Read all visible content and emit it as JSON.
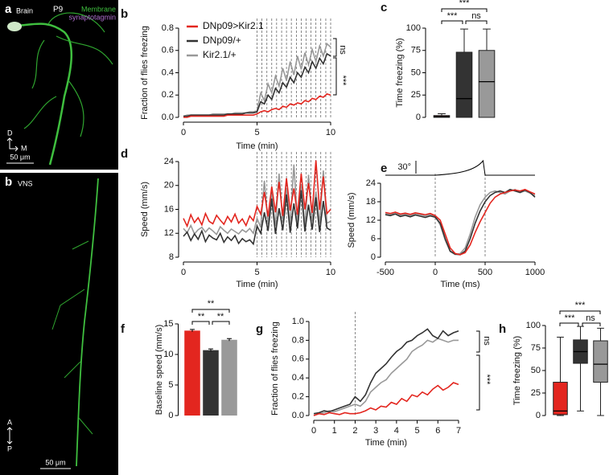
{
  "images": [
    {
      "panel": "a",
      "region": "Brain",
      "stage": "P9",
      "channels": [
        "Membrane",
        "synaptotagmin"
      ],
      "axes": [
        "D",
        "M"
      ],
      "scale_bar": "50 μm"
    },
    {
      "panel": "b",
      "region": "VNS",
      "axes": [
        "A",
        "P"
      ],
      "scale_bar": "50 μm"
    }
  ],
  "chart_data": [
    {
      "panel": "b",
      "type": "line",
      "xlabel": "Time (min)",
      "ylabel": "Fraction of flies freezing",
      "x": [
        0,
        0.25,
        0.5,
        0.75,
        1,
        1.25,
        1.5,
        1.75,
        2,
        2.25,
        2.5,
        2.75,
        3,
        3.25,
        3.5,
        3.75,
        4,
        4.25,
        4.5,
        4.75,
        5,
        5.25,
        5.5,
        5.75,
        6,
        6.25,
        6.5,
        6.75,
        7,
        7.25,
        7.5,
        7.75,
        8,
        8.25,
        8.5,
        8.75,
        9,
        9.25,
        9.5,
        9.75,
        10
      ],
      "xlim": [
        0,
        10
      ],
      "xticks": [
        0,
        5,
        10
      ],
      "ylim": [
        0,
        0.8
      ],
      "yticks": [
        {
          "value": 0,
          "label": "0.0"
        },
        0.2,
        0.4,
        0.6,
        0.8
      ],
      "stimuli": [
        5,
        5.33,
        5.67,
        6,
        6.33,
        6.67,
        7,
        7.33,
        7.67,
        8,
        8.33,
        8.67,
        9,
        9.33,
        9.67,
        10
      ],
      "legend": "upper left",
      "series": [
        {
          "name": "DNp09>Kir2.1",
          "color": "#e3261f",
          "values": [
            0,
            0,
            0.01,
            0.01,
            0.01,
            0.01,
            0.01,
            0.01,
            0.01,
            0.01,
            0.01,
            0.01,
            0.02,
            0.02,
            0.02,
            0.02,
            0.02,
            0.02,
            0.02,
            0.02,
            0.03,
            0.05,
            0.06,
            0.05,
            0.07,
            0.08,
            0.07,
            0.1,
            0.09,
            0.12,
            0.11,
            0.13,
            0.12,
            0.15,
            0.14,
            0.17,
            0.16,
            0.19,
            0.18,
            0.21,
            0.2
          ]
        },
        {
          "name": "DNp09/+",
          "color": "#333333",
          "values": [
            0.01,
            0.01,
            0.02,
            0.02,
            0.02,
            0.02,
            0.02,
            0.02,
            0.02,
            0.02,
            0.02,
            0.02,
            0.03,
            0.03,
            0.03,
            0.03,
            0.03,
            0.04,
            0.04,
            0.04,
            0.05,
            0.14,
            0.12,
            0.2,
            0.16,
            0.26,
            0.22,
            0.31,
            0.27,
            0.36,
            0.31,
            0.4,
            0.36,
            0.45,
            0.4,
            0.5,
            0.44,
            0.53,
            0.48,
            0.57,
            0.55
          ]
        },
        {
          "name": "Kir2.1/+",
          "color": "#999999",
          "values": [
            0.01,
            0.02,
            0.02,
            0.02,
            0.02,
            0.02,
            0.02,
            0.02,
            0.03,
            0.03,
            0.03,
            0.03,
            0.03,
            0.03,
            0.04,
            0.04,
            0.04,
            0.04,
            0.05,
            0.05,
            0.06,
            0.22,
            0.15,
            0.3,
            0.22,
            0.37,
            0.28,
            0.44,
            0.33,
            0.5,
            0.38,
            0.55,
            0.43,
            0.58,
            0.47,
            0.61,
            0.5,
            0.64,
            0.55,
            0.66,
            0.63
          ]
        }
      ],
      "annotations": [
        "ns",
        "***"
      ]
    },
    {
      "panel": "c",
      "type": "box",
      "ylabel": "Time freezing (%)",
      "ylim": [
        0,
        100
      ],
      "yticks": [
        0,
        25,
        50,
        75,
        100
      ],
      "boxes": [
        {
          "color": "#e3261f",
          "min": 0,
          "q1": 0,
          "median": 1,
          "q3": 2,
          "max": 4
        },
        {
          "color": "#333333",
          "min": 0,
          "q1": 0,
          "median": 21,
          "q3": 73,
          "max": 99
        },
        {
          "color": "#999999",
          "min": 0,
          "q1": 0,
          "median": 40,
          "q3": 75,
          "max": 99
        }
      ],
      "annotations": [
        "***",
        "***",
        "ns"
      ]
    },
    {
      "panel": "d",
      "type": "line",
      "xlabel": "Time (min)",
      "ylabel": "Speed (mm/s)",
      "x": [
        0,
        0.25,
        0.5,
        0.75,
        1,
        1.25,
        1.5,
        1.75,
        2,
        2.25,
        2.5,
        2.75,
        3,
        3.25,
        3.5,
        3.75,
        4,
        4.25,
        4.5,
        4.75,
        5,
        5.25,
        5.5,
        5.75,
        6,
        6.25,
        6.5,
        6.75,
        7,
        7.25,
        7.5,
        7.75,
        8,
        8.25,
        8.5,
        8.75,
        9,
        9.25,
        9.5,
        9.75,
        10
      ],
      "xlim": [
        0,
        10
      ],
      "xticks": [
        0,
        5,
        10
      ],
      "ylim": [
        8,
        24
      ],
      "yticks": [
        8,
        12,
        16,
        20,
        24
      ],
      "stimuli": [
        5,
        5.33,
        5.67,
        6,
        6.33,
        6.67,
        7,
        7.33,
        7.67,
        8,
        8.33,
        8.67,
        9,
        9.33,
        9.67,
        10
      ],
      "series": [
        {
          "name": "DNp09>Kir2.1",
          "color": "#e3261f",
          "values": [
            14.5,
            13.2,
            15.1,
            13.8,
            14.6,
            13.4,
            15.3,
            14.0,
            13.6,
            15.0,
            14.2,
            13.5,
            14.8,
            13.9,
            15.2,
            13.7,
            14.4,
            13.3,
            14.9,
            14.1,
            16.5,
            15.2,
            18.9,
            14.8,
            19.8,
            15.5,
            20.6,
            14.9,
            21.2,
            15.8,
            19.5,
            15.1,
            22.0,
            16.0,
            20.4,
            15.4,
            24.2,
            15.9,
            21.5,
            15.3,
            16.0
          ]
        },
        {
          "name": "DNp09/+",
          "color": "#333333",
          "values": [
            11.5,
            12.2,
            10.8,
            11.9,
            11.0,
            12.4,
            10.6,
            11.7,
            11.2,
            10.9,
            12.0,
            10.5,
            11.4,
            10.8,
            11.6,
            10.3,
            11.1,
            10.6,
            10.9,
            10.2,
            13.2,
            12.0,
            15.5,
            12.4,
            17.8,
            11.9,
            16.2,
            12.5,
            18.5,
            12.1,
            17.0,
            12.8,
            19.2,
            12.3,
            16.8,
            12.6,
            18.0,
            12.2,
            17.4,
            12.9,
            12.5
          ]
        },
        {
          "name": "Kir2.1/+",
          "color": "#999999",
          "values": [
            12.8,
            12.1,
            13.3,
            11.9,
            12.6,
            13.0,
            12.2,
            12.9,
            12.4,
            11.8,
            13.1,
            12.5,
            12.0,
            12.7,
            12.3,
            11.9,
            12.6,
            12.2,
            12.8,
            12.0,
            14.5,
            13.0,
            20.8,
            13.5,
            18.5,
            13.2,
            22.0,
            13.8,
            19.6,
            13.4,
            23.5,
            13.9,
            20.2,
            13.3,
            21.8,
            14.0,
            19.0,
            13.6,
            22.5,
            13.7,
            14.0
          ]
        }
      ]
    },
    {
      "panel": "e",
      "type": "line",
      "xlabel": "Time (ms)",
      "ylabel": "Speed (mm/s)",
      "stim_label": "30°",
      "x": [
        -500,
        -450,
        -400,
        -350,
        -300,
        -250,
        -200,
        -150,
        -100,
        -50,
        0,
        50,
        100,
        150,
        200,
        250,
        300,
        350,
        400,
        450,
        500,
        550,
        600,
        650,
        700,
        750,
        800,
        850,
        900,
        950,
        1000
      ],
      "xlim": [
        -500,
        1000
      ],
      "xticks": [
        -500,
        0,
        500,
        1000
      ],
      "ylim": [
        0,
        24
      ],
      "yticks": [
        0,
        6,
        12,
        18,
        24
      ],
      "stimuli": [
        0,
        500
      ],
      "series": [
        {
          "name": "DNp09>Kir2.1",
          "color": "#e3261f",
          "values": [
            14.5,
            14.2,
            14.6,
            14.0,
            14.3,
            13.9,
            14.4,
            14.1,
            13.8,
            14.2,
            13.5,
            12.0,
            7.5,
            3.0,
            1.2,
            0.8,
            1.5,
            4.0,
            8.0,
            11.5,
            14.5,
            17.5,
            19.5,
            20.5,
            21.0,
            21.5,
            21.8,
            21.5,
            22.0,
            21.2,
            20.5
          ]
        },
        {
          "name": "DNp09/+",
          "color": "#333333",
          "values": [
            13.8,
            13.5,
            14.0,
            13.2,
            13.6,
            13.1,
            13.7,
            13.3,
            12.9,
            13.4,
            13.0,
            11.0,
            6.0,
            2.0,
            1.0,
            0.8,
            2.0,
            6.0,
            11.0,
            15.0,
            18.0,
            20.0,
            21.0,
            21.5,
            21.0,
            22.0,
            21.5,
            21.0,
            21.8,
            21.0,
            19.5
          ]
        },
        {
          "name": "Kir2.1/+",
          "color": "#999999",
          "values": [
            14.2,
            13.8,
            14.5,
            13.6,
            14.0,
            13.5,
            14.2,
            13.8,
            13.3,
            13.9,
            13.2,
            10.5,
            5.5,
            1.8,
            0.9,
            1.2,
            3.0,
            7.5,
            13.0,
            17.0,
            19.5,
            21.0,
            21.5,
            21.0,
            20.5,
            21.5,
            22.0,
            21.0,
            21.5,
            20.8,
            20.0
          ]
        }
      ]
    },
    {
      "panel": "f",
      "type": "bar",
      "ylabel": "Baseline speed (mm/s)",
      "ylim": [
        0,
        15
      ],
      "yticks": [
        0,
        5,
        10,
        15
      ],
      "values": [
        13.9,
        10.7,
        12.4
      ],
      "errors": [
        0.2,
        0.2,
        0.2
      ],
      "colors": [
        "#e3261f",
        "#333333",
        "#999999"
      ],
      "annotations": [
        "**",
        "**",
        "**"
      ]
    },
    {
      "panel": "g",
      "type": "line",
      "xlabel": "Time (min)",
      "ylabel": "Fraction of flies freezing",
      "x": [
        0,
        0.25,
        0.5,
        0.75,
        1,
        1.25,
        1.5,
        1.75,
        2,
        2.25,
        2.5,
        2.75,
        3,
        3.25,
        3.5,
        3.75,
        4,
        4.25,
        4.5,
        4.75,
        5,
        5.25,
        5.5,
        5.75,
        6,
        6.25,
        6.5,
        6.75,
        7
      ],
      "xlim": [
        0,
        7
      ],
      "xticks": [
        0,
        1,
        2,
        3,
        4,
        5,
        6,
        7
      ],
      "ylim": [
        0,
        1
      ],
      "yticks": [
        {
          "value": 0,
          "label": "0.0"
        },
        0.2,
        0.4,
        0.6,
        0.8,
        {
          "value": 1,
          "label": "1.0"
        }
      ],
      "stimuli": [
        2
      ],
      "series": [
        {
          "name": "DNp09>Kir2.1",
          "color": "#e3261f",
          "values": [
            0,
            0.02,
            0.01,
            0.03,
            0.02,
            0.01,
            0.03,
            0.02,
            0.02,
            0.03,
            0.05,
            0.08,
            0.06,
            0.1,
            0.09,
            0.14,
            0.12,
            0.18,
            0.15,
            0.22,
            0.2,
            0.25,
            0.22,
            0.28,
            0.32,
            0.27,
            0.3,
            0.35,
            0.33
          ]
        },
        {
          "name": "DNp09/+",
          "color": "#333333",
          "values": [
            0.02,
            0.03,
            0.05,
            0.04,
            0.06,
            0.08,
            0.1,
            0.12,
            0.2,
            0.15,
            0.22,
            0.35,
            0.45,
            0.5,
            0.55,
            0.62,
            0.68,
            0.72,
            0.78,
            0.8,
            0.85,
            0.88,
            0.92,
            0.85,
            0.82,
            0.9,
            0.85,
            0.88,
            0.9
          ]
        },
        {
          "name": "Kir2.1/+",
          "color": "#999999",
          "values": [
            0,
            0.02,
            0.03,
            0.05,
            0.04,
            0.06,
            0.08,
            0.1,
            0.12,
            0.1,
            0.15,
            0.25,
            0.3,
            0.35,
            0.38,
            0.45,
            0.5,
            0.55,
            0.6,
            0.68,
            0.72,
            0.75,
            0.8,
            0.78,
            0.82,
            0.8,
            0.78,
            0.8,
            0.8
          ]
        }
      ],
      "annotations": [
        "ns",
        "***"
      ]
    },
    {
      "panel": "h",
      "type": "box",
      "ylabel": "Time freezing (%)",
      "ylim": [
        0,
        100
      ],
      "yticks": [
        0,
        25,
        50,
        75,
        100
      ],
      "boxes": [
        {
          "color": "#e3261f",
          "min": 0,
          "q1": 1,
          "median": 5,
          "q3": 37,
          "max": 87
        },
        {
          "color": "#333333",
          "min": 5,
          "q1": 58,
          "median": 71,
          "q3": 84,
          "max": 99
        },
        {
          "color": "#999999",
          "min": 0,
          "q1": 37,
          "median": 57,
          "q3": 83,
          "max": 97
        }
      ],
      "annotations": [
        "***",
        "***",
        "ns"
      ]
    }
  ]
}
